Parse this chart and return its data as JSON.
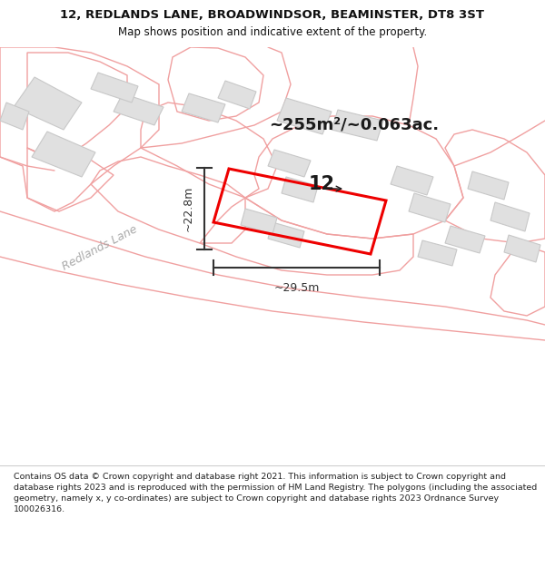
{
  "title_line1": "12, REDLANDS LANE, BROADWINDSOR, BEAMINSTER, DT8 3ST",
  "title_line2": "Map shows position and indicative extent of the property.",
  "area_label": "~255m²/~0.063ac.",
  "number_label": "12",
  "street_label": "Redlands Lane",
  "dim_height": "~22.8m",
  "dim_width": "~29.5m",
  "copyright_text": "Contains OS data © Crown copyright and database right 2021. This information is subject to Crown copyright and database rights 2023 and is reproduced with the permission of HM Land Registry. The polygons (including the associated geometry, namely x, y co-ordinates) are subject to Crown copyright and database rights 2023 Ordnance Survey 100026316.",
  "bg_color": "#ffffff",
  "parcel_color": "#f0a0a0",
  "parcel_lw": 1.0,
  "building_fill": "#e0e0e0",
  "building_edge": "#c8c8c8",
  "property_color": "#ee0000",
  "property_lw": 2.2,
  "dim_color": "#333333",
  "text_color": "#555555",
  "title_color": "#111111",
  "footer_color": "#222222"
}
